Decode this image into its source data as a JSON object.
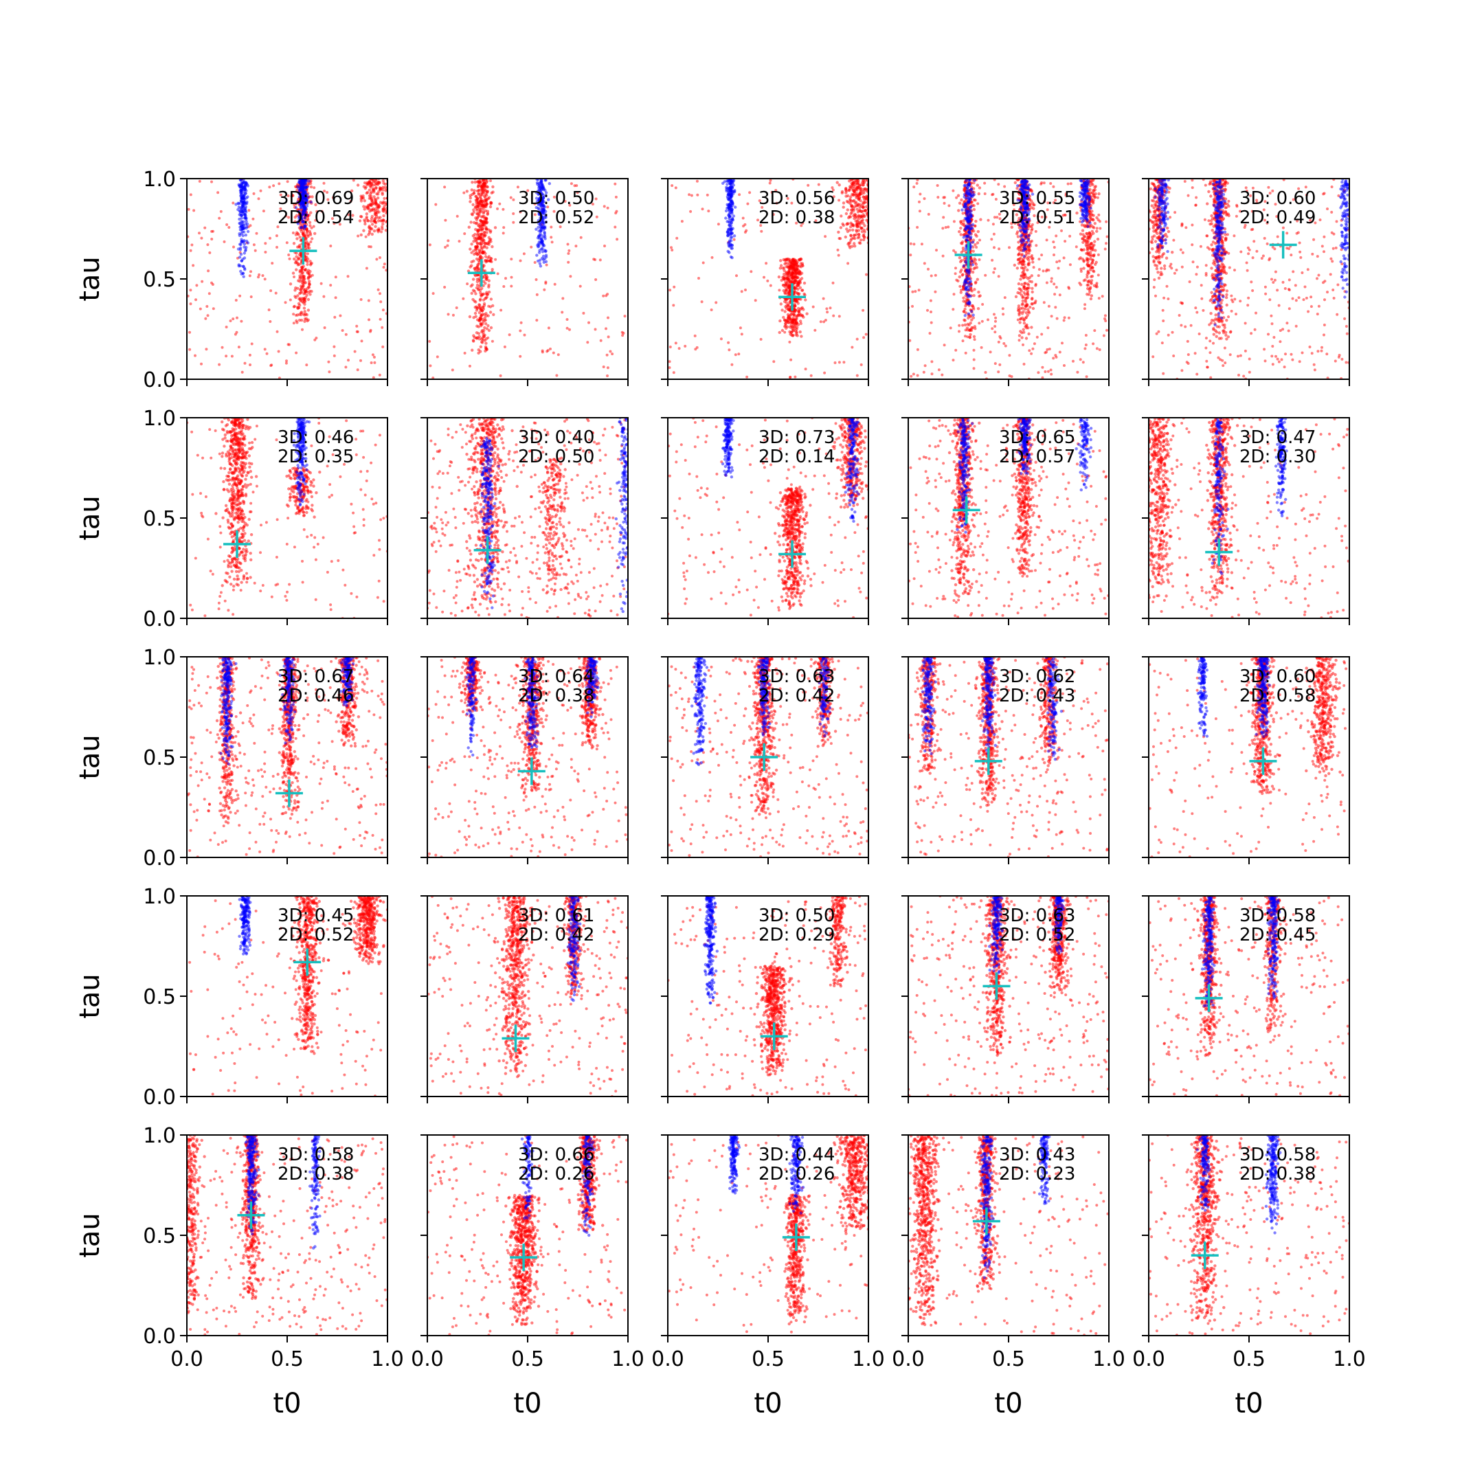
{
  "chart_data": {
    "type": "scatter",
    "layout": "5x5 grid of subplots",
    "xlabel": "t0",
    "ylabel": "tau",
    "xlim": [
      0,
      1
    ],
    "ylim": [
      0,
      1
    ],
    "x_ticks": [
      "0.0",
      "0.5",
      "1.0"
    ],
    "y_ticks": [
      "0.0",
      "0.5",
      "1.0"
    ],
    "grid": false,
    "colors": {
      "cluster_a": "#ff0000",
      "cluster_b": "#0000ff",
      "marker": "#17bfbf"
    },
    "panels": [
      {
        "score_3d": "3D: 0.69",
        "score_2d": "2D: 0.54",
        "marker": [
          0.58,
          0.64
        ],
        "red_bands": [
          [
            0.58,
            0.27,
            1.0,
            0.02,
            1.0
          ],
          [
            0.94,
            0.7,
            1.0,
            0.04,
            0.5
          ]
        ],
        "blue_bands": [
          [
            0.28,
            0.5,
            1.0,
            0.012,
            0.8
          ],
          [
            0.58,
            0.75,
            1.0,
            0.012,
            0.8
          ]
        ],
        "scatter_density": 0.6
      },
      {
        "score_3d": "3D: 0.50",
        "score_2d": "2D: 0.52",
        "marker": [
          0.27,
          0.53
        ],
        "red_bands": [
          [
            0.27,
            0.12,
            1.0,
            0.025,
            1.3
          ]
        ],
        "blue_bands": [
          [
            0.57,
            0.55,
            1.0,
            0.012,
            0.8
          ]
        ],
        "scatter_density": 0.4
      },
      {
        "score_3d": "3D: 0.56",
        "score_2d": "2D: 0.38",
        "marker": [
          0.62,
          0.41
        ],
        "red_bands": [
          [
            0.62,
            0.2,
            0.6,
            0.025,
            1.2
          ],
          [
            0.95,
            0.65,
            1.0,
            0.04,
            0.7
          ]
        ],
        "blue_bands": [
          [
            0.31,
            0.6,
            1.0,
            0.01,
            0.7
          ]
        ],
        "scatter_density": 0.35
      },
      {
        "score_3d": "3D: 0.55",
        "score_2d": "2D: 0.51",
        "marker": [
          0.3,
          0.62
        ],
        "red_bands": [
          [
            0.3,
            0.2,
            1.0,
            0.02,
            0.9
          ],
          [
            0.58,
            0.2,
            1.0,
            0.02,
            0.9
          ],
          [
            0.9,
            0.4,
            1.0,
            0.02,
            0.6
          ]
        ],
        "blue_bands": [
          [
            0.3,
            0.3,
            1.0,
            0.012,
            0.8
          ],
          [
            0.58,
            0.6,
            1.0,
            0.012,
            0.7
          ],
          [
            0.88,
            0.75,
            1.0,
            0.012,
            0.5
          ]
        ],
        "scatter_density": 0.9
      },
      {
        "score_3d": "3D: 0.60",
        "score_2d": "2D: 0.49",
        "marker": [
          0.67,
          0.67
        ],
        "red_bands": [
          [
            0.35,
            0.2,
            1.0,
            0.02,
            1.0
          ],
          [
            0.05,
            0.5,
            1.0,
            0.02,
            0.5
          ]
        ],
        "blue_bands": [
          [
            0.35,
            0.25,
            1.0,
            0.012,
            0.8
          ],
          [
            0.07,
            0.6,
            1.0,
            0.012,
            0.5
          ],
          [
            0.98,
            0.4,
            1.0,
            0.012,
            0.5
          ]
        ],
        "scatter_density": 0.9
      },
      {
        "score_3d": "3D: 0.46",
        "score_2d": "2D: 0.35",
        "marker": [
          0.25,
          0.37
        ],
        "red_bands": [
          [
            0.25,
            0.15,
            1.0,
            0.03,
            1.4
          ],
          [
            0.57,
            0.5,
            0.75,
            0.03,
            0.4
          ]
        ],
        "blue_bands": [
          [
            0.57,
            0.55,
            1.0,
            0.012,
            0.8
          ]
        ],
        "scatter_density": 0.4
      },
      {
        "score_3d": "3D: 0.40",
        "score_2d": "2D: 0.50",
        "marker": [
          0.3,
          0.34
        ],
        "red_bands": [
          [
            0.3,
            0.05,
            1.0,
            0.04,
            1.2
          ],
          [
            0.63,
            0.1,
            0.8,
            0.03,
            0.5
          ]
        ],
        "blue_bands": [
          [
            0.3,
            0.05,
            0.9,
            0.015,
            0.9
          ],
          [
            0.98,
            0.0,
            1.0,
            0.012,
            0.6
          ]
        ],
        "scatter_density": 1.2
      },
      {
        "score_3d": "3D: 0.73",
        "score_2d": "2D: 0.14",
        "marker": [
          0.62,
          0.32
        ],
        "red_bands": [
          [
            0.62,
            0.05,
            0.65,
            0.03,
            1.3
          ],
          [
            0.92,
            0.55,
            1.0,
            0.03,
            0.7
          ]
        ],
        "blue_bands": [
          [
            0.3,
            0.7,
            1.0,
            0.01,
            0.6
          ],
          [
            0.92,
            0.45,
            1.0,
            0.012,
            0.6
          ]
        ],
        "scatter_density": 0.5
      },
      {
        "score_3d": "3D: 0.65",
        "score_2d": "2D: 0.57",
        "marker": [
          0.29,
          0.54
        ],
        "red_bands": [
          [
            0.27,
            0.1,
            1.0,
            0.025,
            1.1
          ],
          [
            0.58,
            0.2,
            1.0,
            0.02,
            0.9
          ]
        ],
        "blue_bands": [
          [
            0.28,
            0.4,
            1.0,
            0.012,
            0.7
          ],
          [
            0.58,
            0.7,
            1.0,
            0.012,
            0.6
          ],
          [
            0.88,
            0.6,
            1.0,
            0.012,
            0.4
          ]
        ],
        "scatter_density": 0.8
      },
      {
        "score_3d": "3D: 0.47",
        "score_2d": "2D: 0.30",
        "marker": [
          0.35,
          0.33
        ],
        "red_bands": [
          [
            0.35,
            0.08,
            1.0,
            0.025,
            1.1
          ],
          [
            0.05,
            0.1,
            1.0,
            0.03,
            1.0
          ]
        ],
        "blue_bands": [
          [
            0.35,
            0.2,
            1.0,
            0.012,
            0.6
          ],
          [
            0.66,
            0.5,
            1.0,
            0.01,
            0.6
          ]
        ],
        "scatter_density": 0.6
      },
      {
        "score_3d": "3D: 0.67",
        "score_2d": "2D: 0.46",
        "marker": [
          0.51,
          0.32
        ],
        "red_bands": [
          [
            0.51,
            0.2,
            1.0,
            0.02,
            1.0
          ],
          [
            0.2,
            0.15,
            1.0,
            0.02,
            0.8
          ],
          [
            0.8,
            0.55,
            1.0,
            0.02,
            0.6
          ]
        ],
        "blue_bands": [
          [
            0.2,
            0.45,
            1.0,
            0.012,
            0.8
          ],
          [
            0.51,
            0.55,
            1.0,
            0.012,
            0.6
          ],
          [
            0.8,
            0.75,
            1.0,
            0.012,
            0.5
          ]
        ],
        "scatter_density": 0.8
      },
      {
        "score_3d": "3D: 0.64",
        "score_2d": "2D: 0.38",
        "marker": [
          0.52,
          0.43
        ],
        "red_bands": [
          [
            0.52,
            0.3,
            1.0,
            0.025,
            1.0
          ],
          [
            0.81,
            0.55,
            1.0,
            0.02,
            0.7
          ],
          [
            0.22,
            0.7,
            1.0,
            0.02,
            0.5
          ]
        ],
        "blue_bands": [
          [
            0.52,
            0.5,
            1.0,
            0.012,
            0.7
          ],
          [
            0.22,
            0.5,
            1.0,
            0.01,
            0.5
          ],
          [
            0.82,
            0.7,
            1.0,
            0.012,
            0.5
          ]
        ],
        "scatter_density": 0.8
      },
      {
        "score_3d": "3D: 0.63",
        "score_2d": "2D: 0.42",
        "marker": [
          0.48,
          0.5
        ],
        "red_bands": [
          [
            0.48,
            0.2,
            1.0,
            0.025,
            1.1
          ],
          [
            0.78,
            0.55,
            1.0,
            0.02,
            0.5
          ]
        ],
        "blue_bands": [
          [
            0.16,
            0.45,
            1.0,
            0.012,
            0.7
          ],
          [
            0.48,
            0.6,
            1.0,
            0.012,
            0.6
          ],
          [
            0.78,
            0.6,
            1.0,
            0.01,
            0.4
          ]
        ],
        "scatter_density": 0.8
      },
      {
        "score_3d": "3D: 0.62",
        "score_2d": "2D: 0.43",
        "marker": [
          0.4,
          0.48
        ],
        "red_bands": [
          [
            0.4,
            0.25,
            1.0,
            0.02,
            1.0
          ],
          [
            0.1,
            0.4,
            1.0,
            0.02,
            0.6
          ],
          [
            0.7,
            0.45,
            1.0,
            0.02,
            0.5
          ]
        ],
        "blue_bands": [
          [
            0.1,
            0.5,
            1.0,
            0.012,
            0.6
          ],
          [
            0.4,
            0.5,
            1.0,
            0.012,
            0.7
          ],
          [
            0.72,
            0.45,
            1.0,
            0.012,
            0.5
          ]
        ],
        "scatter_density": 0.8
      },
      {
        "score_3d": "3D: 0.60",
        "score_2d": "2D: 0.58",
        "marker": [
          0.57,
          0.48
        ],
        "red_bands": [
          [
            0.57,
            0.3,
            1.0,
            0.025,
            1.1
          ],
          [
            0.87,
            0.4,
            1.0,
            0.03,
            0.9
          ]
        ],
        "blue_bands": [
          [
            0.57,
            0.55,
            1.0,
            0.012,
            0.8
          ],
          [
            0.27,
            0.6,
            1.0,
            0.01,
            0.5
          ]
        ],
        "scatter_density": 0.5
      },
      {
        "score_3d": "3D: 0.45",
        "score_2d": "2D: 0.52",
        "marker": [
          0.6,
          0.67
        ],
        "red_bands": [
          [
            0.6,
            0.2,
            1.0,
            0.025,
            1.2
          ],
          [
            0.9,
            0.65,
            1.0,
            0.03,
            0.9
          ]
        ],
        "blue_bands": [
          [
            0.29,
            0.68,
            1.0,
            0.012,
            0.7
          ]
        ],
        "scatter_density": 0.4
      },
      {
        "score_3d": "3D: 0.61",
        "score_2d": "2D: 0.42",
        "marker": [
          0.44,
          0.29
        ],
        "red_bands": [
          [
            0.44,
            0.1,
            1.0,
            0.03,
            1.3
          ],
          [
            0.73,
            0.5,
            1.0,
            0.02,
            0.6
          ]
        ],
        "blue_bands": [
          [
            0.73,
            0.45,
            1.0,
            0.012,
            0.6
          ]
        ],
        "scatter_density": 0.8
      },
      {
        "score_3d": "3D: 0.50",
        "score_2d": "2D: 0.29",
        "marker": [
          0.53,
          0.3
        ],
        "red_bands": [
          [
            0.53,
            0.1,
            0.65,
            0.03,
            1.3
          ],
          [
            0.85,
            0.55,
            1.0,
            0.02,
            0.5
          ]
        ],
        "blue_bands": [
          [
            0.21,
            0.45,
            1.0,
            0.012,
            0.9
          ]
        ],
        "scatter_density": 0.6
      },
      {
        "score_3d": "3D: 0.63",
        "score_2d": "2D: 0.52",
        "marker": [
          0.44,
          0.55
        ],
        "red_bands": [
          [
            0.44,
            0.2,
            1.0,
            0.025,
            1.1
          ],
          [
            0.75,
            0.5,
            1.0,
            0.02,
            0.8
          ]
        ],
        "blue_bands": [
          [
            0.44,
            0.6,
            1.0,
            0.012,
            0.6
          ],
          [
            0.75,
            0.7,
            1.0,
            0.01,
            0.5
          ]
        ],
        "scatter_density": 0.8
      },
      {
        "score_3d": "3D: 0.58",
        "score_2d": "2D: 0.45",
        "marker": [
          0.3,
          0.49
        ],
        "red_bands": [
          [
            0.3,
            0.2,
            1.0,
            0.02,
            1.0
          ],
          [
            0.62,
            0.3,
            1.0,
            0.02,
            0.6
          ]
        ],
        "blue_bands": [
          [
            0.3,
            0.4,
            1.0,
            0.012,
            0.8
          ],
          [
            0.62,
            0.45,
            1.0,
            0.012,
            0.7
          ]
        ],
        "scatter_density": 0.7
      },
      {
        "score_3d": "3D: 0.58",
        "score_2d": "2D: 0.38",
        "marker": [
          0.32,
          0.6
        ],
        "red_bands": [
          [
            0.32,
            0.15,
            1.0,
            0.02,
            1.1
          ],
          [
            0.02,
            0.1,
            1.0,
            0.02,
            0.7
          ]
        ],
        "blue_bands": [
          [
            0.32,
            0.5,
            1.0,
            0.012,
            0.8
          ],
          [
            0.64,
            0.4,
            1.0,
            0.01,
            0.5
          ]
        ],
        "scatter_density": 0.8
      },
      {
        "score_3d": "3D: 0.66",
        "score_2d": "2D: 0.26",
        "marker": [
          0.48,
          0.39
        ],
        "red_bands": [
          [
            0.48,
            0.05,
            0.7,
            0.03,
            1.4
          ],
          [
            0.8,
            0.5,
            1.0,
            0.02,
            0.8
          ]
        ],
        "blue_bands": [
          [
            0.8,
            0.45,
            1.0,
            0.012,
            0.5
          ],
          [
            0.5,
            0.55,
            1.0,
            0.01,
            0.4
          ]
        ],
        "scatter_density": 0.6
      },
      {
        "score_3d": "3D: 0.44",
        "score_2d": "2D: 0.26",
        "marker": [
          0.64,
          0.49
        ],
        "red_bands": [
          [
            0.64,
            0.05,
            0.7,
            0.025,
            1.1
          ],
          [
            0.93,
            0.5,
            1.0,
            0.04,
            1.0
          ]
        ],
        "blue_bands": [
          [
            0.33,
            0.7,
            1.0,
            0.01,
            0.6
          ],
          [
            0.64,
            0.6,
            1.0,
            0.012,
            0.6
          ]
        ],
        "scatter_density": 0.4
      },
      {
        "score_3d": "3D: 0.43",
        "score_2d": "2D: 0.23",
        "marker": [
          0.39,
          0.57
        ],
        "red_bands": [
          [
            0.08,
            0.05,
            1.0,
            0.03,
            1.4
          ],
          [
            0.39,
            0.2,
            1.0,
            0.02,
            1.0
          ]
        ],
        "blue_bands": [
          [
            0.39,
            0.25,
            1.0,
            0.012,
            0.8
          ],
          [
            0.68,
            0.65,
            1.0,
            0.01,
            0.5
          ]
        ],
        "scatter_density": 0.5
      },
      {
        "score_3d": "3D: 0.58",
        "score_2d": "2D: 0.38",
        "marker": [
          0.28,
          0.4
        ],
        "red_bands": [
          [
            0.28,
            0.05,
            1.0,
            0.03,
            1.3
          ]
        ],
        "blue_bands": [
          [
            0.28,
            0.6,
            1.0,
            0.01,
            0.5
          ],
          [
            0.62,
            0.5,
            1.0,
            0.012,
            0.8
          ]
        ],
        "scatter_density": 0.7
      }
    ]
  }
}
